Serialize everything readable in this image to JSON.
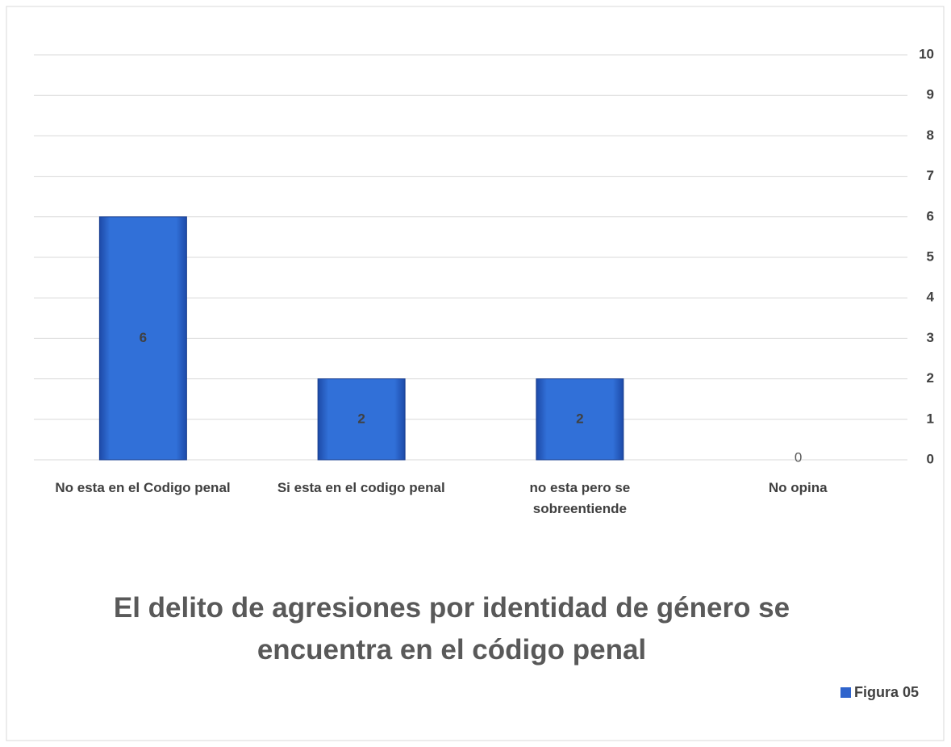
{
  "chart_data": {
    "type": "bar",
    "title": "El delito de agresiones por identidad de género se encuentra en el código penal",
    "categories": [
      "No esta en el Codigo penal",
      "Si esta en el codigo penal",
      "no esta pero se sobreentiende",
      "No opina"
    ],
    "series": [
      {
        "name": "Figura 05",
        "color": "#2f64cc",
        "values": [
          6,
          2,
          2,
          0
        ]
      }
    ],
    "ylim": [
      0,
      10
    ],
    "yticks": [
      0,
      1,
      2,
      3,
      4,
      5,
      6,
      7,
      8,
      9,
      10
    ],
    "grid": true,
    "legend": "bottom-right"
  }
}
